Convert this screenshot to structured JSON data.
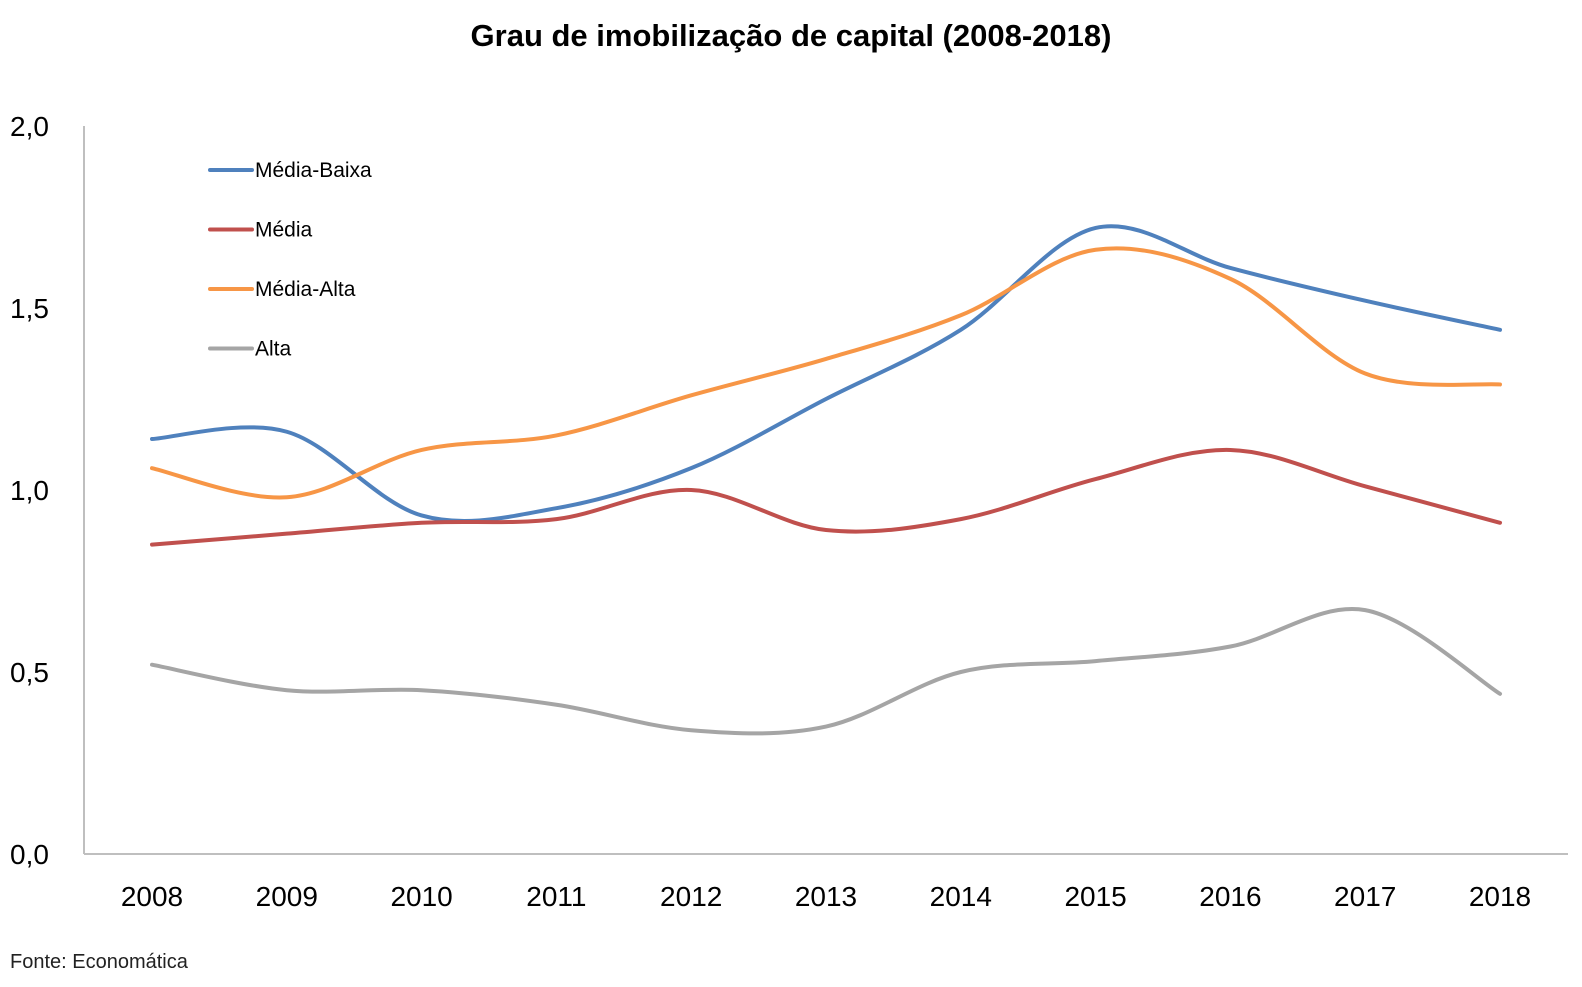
{
  "chart_data": {
    "type": "line",
    "title": "Grau de imobilização de capital (2008-2018)",
    "xlabel": "",
    "ylabel": "",
    "categories": [
      "2008",
      "2009",
      "2010",
      "2011",
      "2012",
      "2013",
      "2014",
      "2015",
      "2016",
      "2017",
      "2018"
    ],
    "ylim": [
      0,
      2
    ],
    "yticks": [
      "0,0",
      "0,5",
      "1,0",
      "1,5",
      "2,0"
    ],
    "grid": false,
    "legend_position": "top-left",
    "smooth": true,
    "series": [
      {
        "name": "Média-Baixa",
        "color": "#4f81bd",
        "values": [
          1.14,
          1.16,
          0.93,
          0.95,
          1.06,
          1.25,
          1.44,
          1.72,
          1.61,
          1.52,
          1.44
        ]
      },
      {
        "name": "Média",
        "color": "#c0504d",
        "values": [
          0.85,
          0.88,
          0.91,
          0.92,
          1.0,
          0.89,
          0.92,
          1.03,
          1.11,
          1.01,
          0.91
        ]
      },
      {
        "name": "Média-Alta",
        "color": "#f79646",
        "values": [
          1.06,
          0.98,
          1.11,
          1.15,
          1.26,
          1.36,
          1.48,
          1.66,
          1.58,
          1.32,
          1.29
        ]
      },
      {
        "name": "Alta",
        "color": "#a5a5a5",
        "values": [
          0.52,
          0.45,
          0.45,
          0.41,
          0.34,
          0.35,
          0.5,
          0.53,
          0.57,
          0.67,
          0.44
        ]
      }
    ]
  },
  "source": "Fonte: Economática"
}
